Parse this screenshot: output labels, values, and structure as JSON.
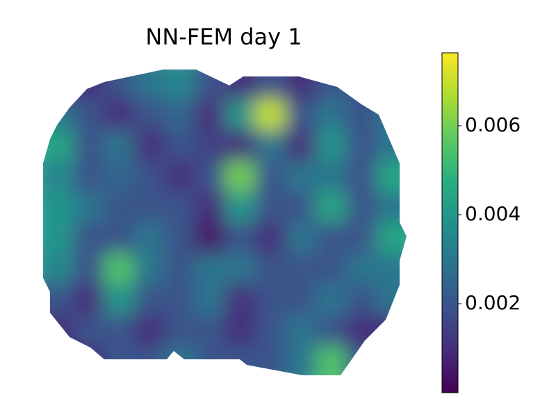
{
  "chart_data": {
    "type": "heatmap",
    "title": "NN-FEM day 1",
    "colormap": "viridis",
    "clim": [
      0,
      0.00764
    ],
    "cticks": [
      0.002,
      0.004,
      0.006
    ],
    "z": [
      [
        0.001,
        0.001,
        0.002,
        0.003,
        0.0035,
        0.002,
        0.001,
        0.002,
        0.001,
        0.002,
        0.002,
        0.001
      ],
      [
        0.003,
        0.002,
        0.001,
        0.002,
        0.0025,
        0.001,
        0.004,
        0.007,
        0.002,
        0.003,
        0.002,
        0.003
      ],
      [
        0.0045,
        0.002,
        0.003,
        0.001,
        0.002,
        0.0015,
        0.001,
        0.003,
        0.001,
        0.004,
        0.002,
        0.003
      ],
      [
        0.0035,
        0.002,
        0.0025,
        0.002,
        0.001,
        0.002,
        0.006,
        0.002,
        0.003,
        0.003,
        0.002,
        0.0045
      ],
      [
        0.004,
        0.003,
        0.002,
        0.002,
        0.002,
        0.001,
        0.004,
        0.002,
        0.002,
        0.0045,
        0.002,
        0.003
      ],
      [
        0.004,
        0.002,
        0.002,
        0.003,
        0.002,
        0.0005,
        0.002,
        0.001,
        0.003,
        0.002,
        0.002,
        0.0045
      ],
      [
        0.0035,
        0.002,
        0.0055,
        0.003,
        0.002,
        0.003,
        0.003,
        0.002,
        0.002,
        0.002,
        0.003,
        0.003
      ],
      [
        0.002,
        0.001,
        0.004,
        0.002,
        0.002,
        0.003,
        0.001,
        0.002,
        0.002,
        0.003,
        0.002,
        0.003
      ],
      [
        0.001,
        0.002,
        0.002,
        0.001,
        0.002,
        0.002,
        0.001,
        0.002,
        0.003,
        0.002,
        0.001,
        0.001
      ],
      [
        0.001,
        0.001,
        0.002,
        0.002,
        0.003,
        0.002,
        0.002,
        0.002,
        0.003,
        0.0055,
        0.002,
        0.001
      ]
    ]
  }
}
